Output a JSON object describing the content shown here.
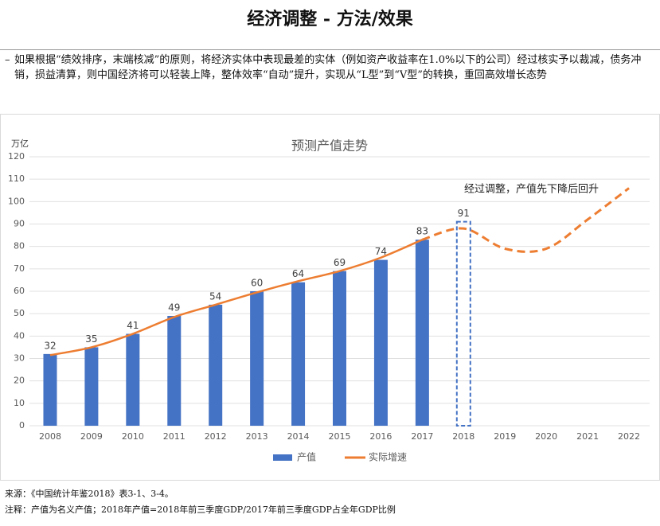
{
  "header": {
    "title": "经济调整 - 方法/效果"
  },
  "paragraph": "如果根据“绩效排序，末端核减”的原则，将经济实体中表现最差的实体（例如资产收益率在1.0%以下的公司）经过核实予以裁减，债务冲销，损益清算，则中国经济将可以轻装上降，整体效率“自动”提升，实现从“L型”到“V型”的转换，重回高效增长态势",
  "chart_data": {
    "type": "bar",
    "title": "预测产值走势",
    "y_unit": "万亿",
    "categories": [
      "2008",
      "2009",
      "2010",
      "2011",
      "2012",
      "2013",
      "2014",
      "2015",
      "2016",
      "2017",
      "2018",
      "2019",
      "2020",
      "2021",
      "2022"
    ],
    "series": [
      {
        "name": "产值",
        "type": "bar",
        "color": "#4472c4",
        "values": [
          32,
          35,
          41,
          49,
          54,
          60,
          64,
          69,
          74,
          83,
          91,
          null,
          null,
          null,
          null
        ]
      },
      {
        "name": "实际增速",
        "type": "line",
        "color": "#ed7d31",
        "values": [
          31.5,
          35,
          41,
          48.5,
          54,
          59.5,
          64.5,
          69,
          75,
          83,
          88,
          79,
          79,
          92,
          106
        ]
      }
    ],
    "forecast_start": 10,
    "annotation": "经过调整，产值先下降后回升",
    "ylim": [
      0,
      120
    ],
    "yticks": [
      0,
      10,
      20,
      30,
      40,
      50,
      60,
      70,
      80,
      90,
      100,
      110,
      120
    ],
    "grid": true
  },
  "footer": {
    "source": "来源：《中国统计年鉴2018》表3-1、3-4。",
    "note": "注释：产值为名义产值；2018年产值=2018年前三季度GDP/2017年前三季度GDP占全年GDP比例"
  }
}
